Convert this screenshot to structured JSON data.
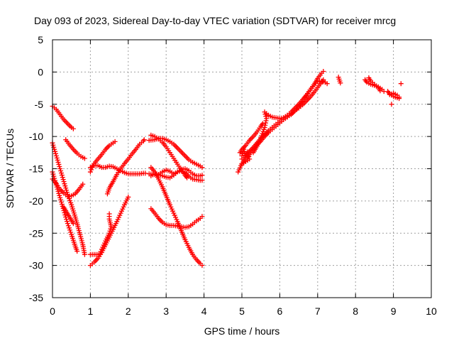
{
  "chart_data": {
    "type": "scatter",
    "title": "Day 093 of 2023, Sidereal Day-to-day VTEC variation (SDTVAR) for receiver mrcg",
    "xlabel": "GPS time / hours",
    "ylabel": "SDTVAR / TECUs",
    "xlim": [
      0,
      10
    ],
    "ylim": [
      -35,
      5
    ],
    "x_ticks": [
      "0",
      "1",
      "2",
      "3",
      "4",
      "5",
      "6",
      "7",
      "8",
      "9",
      "10"
    ],
    "y_ticks": [
      "5",
      "0",
      "-5",
      "-10",
      "-15",
      "-20",
      "-25",
      "-30",
      "-35"
    ],
    "grid": true,
    "legend": "none",
    "marker": "+",
    "color": "#ff0000",
    "series": [
      {
        "points": [
          [
            0.0,
            -5.3
          ],
          [
            0.1,
            -5.8
          ],
          [
            0.2,
            -6.6
          ],
          [
            0.3,
            -7.4
          ],
          [
            0.4,
            -8.0
          ],
          [
            0.5,
            -8.6
          ],
          [
            0.55,
            -8.8
          ]
        ]
      },
      {
        "points": [
          [
            0.35,
            -10.5
          ],
          [
            0.45,
            -11.3
          ],
          [
            0.55,
            -12.0
          ],
          [
            0.65,
            -12.6
          ],
          [
            0.75,
            -13.1
          ],
          [
            0.85,
            -13.4
          ]
        ]
      },
      {
        "points": [
          [
            0.0,
            -11.0
          ],
          [
            0.1,
            -13.0
          ],
          [
            0.2,
            -15.0
          ],
          [
            0.3,
            -17.0
          ],
          [
            0.4,
            -19.0
          ],
          [
            0.5,
            -20.6
          ],
          [
            0.6,
            -22.5
          ],
          [
            0.7,
            -24.6
          ],
          [
            0.8,
            -26.8
          ],
          [
            0.85,
            -28.3
          ]
        ]
      },
      {
        "points": [
          [
            0.0,
            -15.5
          ],
          [
            0.1,
            -17.5
          ],
          [
            0.2,
            -19.5
          ],
          [
            0.3,
            -21.5
          ],
          [
            0.4,
            -23.5
          ],
          [
            0.5,
            -25.2
          ],
          [
            0.6,
            -27.0
          ],
          [
            0.65,
            -27.8
          ]
        ]
      },
      {
        "points": [
          [
            0.0,
            -16.6
          ],
          [
            0.1,
            -17.3
          ],
          [
            0.2,
            -18.2
          ],
          [
            0.3,
            -18.8
          ],
          [
            0.4,
            -19.3
          ],
          [
            0.5,
            -19.2
          ],
          [
            0.6,
            -18.9
          ],
          [
            0.7,
            -18.2
          ],
          [
            0.8,
            -17.4
          ]
        ]
      },
      {
        "points": [
          [
            0.3,
            -21.0
          ],
          [
            0.4,
            -22.0
          ],
          [
            0.5,
            -23.0
          ],
          [
            0.55,
            -23.5
          ]
        ]
      },
      {
        "points": [
          [
            1.0,
            -30.0
          ],
          [
            1.1,
            -29.5
          ],
          [
            1.2,
            -28.9
          ],
          [
            1.3,
            -28.0
          ],
          [
            1.4,
            -26.8
          ],
          [
            1.5,
            -25.6
          ],
          [
            1.6,
            -24.4
          ],
          [
            1.7,
            -23.2
          ],
          [
            1.8,
            -21.9
          ],
          [
            1.9,
            -20.6
          ],
          [
            2.0,
            -19.4
          ]
        ]
      },
      {
        "points": [
          [
            1.0,
            -28.3
          ],
          [
            1.1,
            -28.3
          ],
          [
            1.2,
            -28.3
          ],
          [
            1.25,
            -28.2
          ],
          [
            1.3,
            -27.5
          ],
          [
            1.4,
            -26.2
          ],
          [
            1.5,
            -25.0
          ],
          [
            1.55,
            -24.0
          ],
          [
            1.5,
            -22.8
          ],
          [
            1.5,
            -22.0
          ]
        ]
      },
      {
        "points": [
          [
            1.0,
            -14.8
          ],
          [
            1.1,
            -14.5
          ],
          [
            1.2,
            -14.5
          ],
          [
            1.3,
            -14.8
          ],
          [
            1.4,
            -14.8
          ],
          [
            1.5,
            -14.6
          ],
          [
            1.6,
            -14.7
          ],
          [
            1.7,
            -15.0
          ],
          [
            1.8,
            -15.3
          ],
          [
            1.9,
            -15.6
          ],
          [
            2.0,
            -15.8
          ],
          [
            2.1,
            -15.8
          ],
          [
            2.2,
            -15.8
          ],
          [
            2.3,
            -15.8
          ],
          [
            2.4,
            -15.7
          ],
          [
            2.45,
            -15.7
          ]
        ]
      },
      {
        "points": [
          [
            1.0,
            -15.5
          ],
          [
            1.05,
            -14.8
          ],
          [
            1.1,
            -14.2
          ],
          [
            1.2,
            -13.5
          ],
          [
            1.3,
            -12.8
          ],
          [
            1.4,
            -12.0
          ],
          [
            1.5,
            -11.4
          ],
          [
            1.6,
            -11.0
          ],
          [
            1.65,
            -10.8
          ]
        ]
      },
      {
        "points": [
          [
            1.45,
            -18.9
          ],
          [
            1.5,
            -18.0
          ],
          [
            1.6,
            -17.0
          ],
          [
            1.7,
            -15.9
          ],
          [
            1.8,
            -15.0
          ],
          [
            1.9,
            -14.2
          ],
          [
            2.0,
            -13.5
          ],
          [
            2.1,
            -12.7
          ],
          [
            2.2,
            -12.0
          ],
          [
            2.3,
            -11.2
          ],
          [
            2.4,
            -10.7
          ],
          [
            2.42,
            -10.5
          ]
        ]
      },
      {
        "points": [
          [
            2.55,
            -15.8
          ],
          [
            2.7,
            -15.9
          ],
          [
            2.8,
            -15.9
          ],
          [
            2.9,
            -15.5
          ],
          [
            3.0,
            -15.2
          ],
          [
            3.1,
            -15.4
          ],
          [
            3.2,
            -15.8
          ],
          [
            3.3,
            -15.5
          ],
          [
            3.4,
            -15.1
          ],
          [
            3.5,
            -15.0
          ],
          [
            3.6,
            -15.3
          ],
          [
            3.7,
            -15.8
          ],
          [
            3.8,
            -16.1
          ],
          [
            3.9,
            -16.1
          ],
          [
            3.95,
            -16.0
          ]
        ]
      },
      {
        "points": [
          [
            2.6,
            -16.1
          ],
          [
            2.7,
            -15.8
          ],
          [
            2.8,
            -15.9
          ],
          [
            2.9,
            -16.1
          ],
          [
            3.0,
            -16.3
          ],
          [
            3.1,
            -16.4
          ],
          [
            3.2,
            -16.0
          ],
          [
            3.3,
            -15.5
          ],
          [
            3.4,
            -15.3
          ],
          [
            3.5,
            -15.6
          ],
          [
            3.6,
            -16.2
          ],
          [
            3.7,
            -16.6
          ],
          [
            3.8,
            -16.7
          ],
          [
            3.9,
            -16.8
          ],
          [
            3.95,
            -16.8
          ]
        ]
      },
      {
        "points": [
          [
            2.55,
            -10.6
          ],
          [
            2.7,
            -10.5
          ],
          [
            2.8,
            -10.3
          ],
          [
            2.9,
            -10.3
          ],
          [
            3.0,
            -10.5
          ],
          [
            3.1,
            -10.8
          ],
          [
            3.2,
            -11.2
          ],
          [
            3.3,
            -11.8
          ],
          [
            3.4,
            -12.4
          ],
          [
            3.5,
            -13.0
          ],
          [
            3.6,
            -13.6
          ],
          [
            3.7,
            -14.0
          ],
          [
            3.8,
            -14.3
          ],
          [
            3.9,
            -14.6
          ],
          [
            3.95,
            -14.8
          ]
        ]
      },
      {
        "points": [
          [
            2.6,
            -9.8
          ],
          [
            2.7,
            -10.0
          ],
          [
            2.8,
            -10.4
          ],
          [
            2.9,
            -10.9
          ],
          [
            3.0,
            -11.6
          ],
          [
            3.1,
            -12.5
          ],
          [
            3.2,
            -13.4
          ],
          [
            3.3,
            -14.3
          ],
          [
            3.4,
            -15.2
          ],
          [
            3.5,
            -16.0
          ],
          [
            3.55,
            -16.4
          ]
        ]
      },
      {
        "points": [
          [
            2.6,
            -14.8
          ],
          [
            2.7,
            -15.5
          ],
          [
            2.8,
            -16.6
          ],
          [
            2.9,
            -17.8
          ],
          [
            3.0,
            -19.2
          ],
          [
            3.1,
            -20.6
          ],
          [
            3.2,
            -21.9
          ],
          [
            3.3,
            -23.2
          ],
          [
            3.4,
            -24.6
          ],
          [
            3.5,
            -26.0
          ],
          [
            3.6,
            -27.2
          ],
          [
            3.7,
            -28.3
          ],
          [
            3.8,
            -29.1
          ],
          [
            3.9,
            -29.7
          ],
          [
            3.95,
            -30.0
          ]
        ]
      },
      {
        "points": [
          [
            2.6,
            -21.2
          ],
          [
            2.7,
            -21.9
          ],
          [
            2.8,
            -22.7
          ],
          [
            2.9,
            -23.3
          ],
          [
            3.0,
            -23.7
          ],
          [
            3.1,
            -23.8
          ],
          [
            3.2,
            -23.8
          ],
          [
            3.3,
            -23.9
          ],
          [
            3.4,
            -24.0
          ],
          [
            3.5,
            -24.1
          ],
          [
            3.6,
            -24.0
          ],
          [
            3.7,
            -23.6
          ],
          [
            3.8,
            -23.1
          ],
          [
            3.9,
            -22.7
          ],
          [
            3.95,
            -22.4
          ]
        ]
      },
      {
        "points": [
          [
            4.9,
            -15.5
          ],
          [
            5.0,
            -14.2
          ],
          [
            5.1,
            -13.5
          ],
          [
            5.2,
            -12.8
          ],
          [
            5.3,
            -12.0
          ],
          [
            5.4,
            -11.3
          ],
          [
            5.5,
            -10.7
          ],
          [
            5.6,
            -10.0
          ],
          [
            5.7,
            -9.4
          ],
          [
            5.8,
            -8.9
          ],
          [
            5.9,
            -8.4
          ],
          [
            6.0,
            -7.9
          ],
          [
            6.1,
            -7.4
          ],
          [
            6.2,
            -7.0
          ],
          [
            6.3,
            -6.5
          ],
          [
            6.4,
            -6.0
          ],
          [
            6.5,
            -5.6
          ],
          [
            6.6,
            -5.1
          ],
          [
            6.7,
            -4.5
          ],
          [
            6.8,
            -3.9
          ],
          [
            6.9,
            -3.2
          ],
          [
            7.0,
            -2.4
          ],
          [
            7.1,
            -1.6
          ],
          [
            7.15,
            -1.2
          ]
        ]
      },
      {
        "points": [
          [
            5.0,
            -13.5
          ],
          [
            5.1,
            -13.0
          ],
          [
            5.2,
            -12.3
          ],
          [
            5.3,
            -11.7
          ],
          [
            5.4,
            -11.0
          ],
          [
            5.5,
            -10.3
          ],
          [
            5.6,
            -9.7
          ],
          [
            5.7,
            -9.1
          ],
          [
            5.8,
            -8.6
          ],
          [
            5.9,
            -8.1
          ],
          [
            6.0,
            -7.6
          ],
          [
            6.1,
            -7.1
          ],
          [
            6.2,
            -6.7
          ],
          [
            6.3,
            -6.2
          ],
          [
            6.4,
            -5.6
          ],
          [
            6.5,
            -5.0
          ],
          [
            6.6,
            -4.3
          ],
          [
            6.7,
            -3.6
          ],
          [
            6.8,
            -2.8
          ],
          [
            6.9,
            -2.0
          ],
          [
            7.0,
            -1.0
          ],
          [
            7.1,
            -0.2
          ],
          [
            7.15,
            0.1
          ]
        ]
      },
      {
        "points": [
          [
            4.95,
            -12.5
          ],
          [
            5.0,
            -12.0
          ],
          [
            5.1,
            -11.4
          ],
          [
            5.2,
            -10.6
          ],
          [
            5.3,
            -10.0
          ],
          [
            5.4,
            -9.3
          ],
          [
            5.5,
            -8.4
          ],
          [
            5.55,
            -8.0
          ]
        ]
      },
      {
        "points": [
          [
            5.3,
            -12.5
          ],
          [
            5.4,
            -11.5
          ],
          [
            5.5,
            -10.2
          ],
          [
            5.6,
            -8.6
          ],
          [
            5.65,
            -7.2
          ],
          [
            5.6,
            -6.2
          ],
          [
            5.7,
            -6.7
          ],
          [
            5.8,
            -7.0
          ],
          [
            5.9,
            -7.1
          ],
          [
            6.0,
            -7.2
          ],
          [
            6.1,
            -7.1
          ],
          [
            6.2,
            -6.9
          ],
          [
            6.3,
            -6.6
          ],
          [
            6.4,
            -6.0
          ],
          [
            6.5,
            -5.4
          ],
          [
            6.6,
            -4.6
          ],
          [
            6.7,
            -3.7
          ],
          [
            6.8,
            -2.8
          ],
          [
            6.9,
            -2.0
          ],
          [
            7.0,
            -1.5
          ],
          [
            7.1,
            -1.4
          ],
          [
            7.2,
            -1.6
          ],
          [
            7.25,
            -1.8
          ]
        ]
      },
      {
        "points": [
          [
            5.0,
            -13.0
          ],
          [
            5.05,
            -12.0
          ],
          [
            5.1,
            -13.2
          ],
          [
            5.15,
            -12.4
          ],
          [
            5.2,
            -13.5
          ],
          [
            5.0,
            -14.3
          ]
        ]
      },
      {
        "points": [
          [
            7.55,
            -0.8
          ],
          [
            7.6,
            -1.7
          ]
        ]
      },
      {
        "points": [
          [
            8.25,
            -1.2
          ],
          [
            8.3,
            -1.6
          ],
          [
            8.4,
            -1.9
          ],
          [
            8.5,
            -2.1
          ],
          [
            8.6,
            -2.3
          ],
          [
            8.7,
            -2.7
          ],
          [
            8.75,
            -3.0
          ]
        ]
      },
      {
        "points": [
          [
            8.35,
            -0.9
          ],
          [
            8.4,
            -1.4
          ],
          [
            8.5,
            -1.9
          ],
          [
            8.6,
            -2.4
          ],
          [
            8.65,
            -2.9
          ]
        ]
      },
      {
        "points": [
          [
            8.85,
            -3.0
          ],
          [
            8.9,
            -3.4
          ],
          [
            9.0,
            -3.8
          ],
          [
            9.1,
            -4.0
          ],
          [
            9.15,
            -4.1
          ]
        ]
      },
      {
        "points": [
          [
            8.9,
            -3.5
          ],
          [
            9.0,
            -3.3
          ],
          [
            9.1,
            -3.6
          ],
          [
            9.15,
            -3.9
          ]
        ]
      },
      {
        "points": [
          [
            8.95,
            -5.0
          ]
        ]
      },
      {
        "points": [
          [
            9.2,
            -1.8
          ]
        ]
      }
    ]
  }
}
